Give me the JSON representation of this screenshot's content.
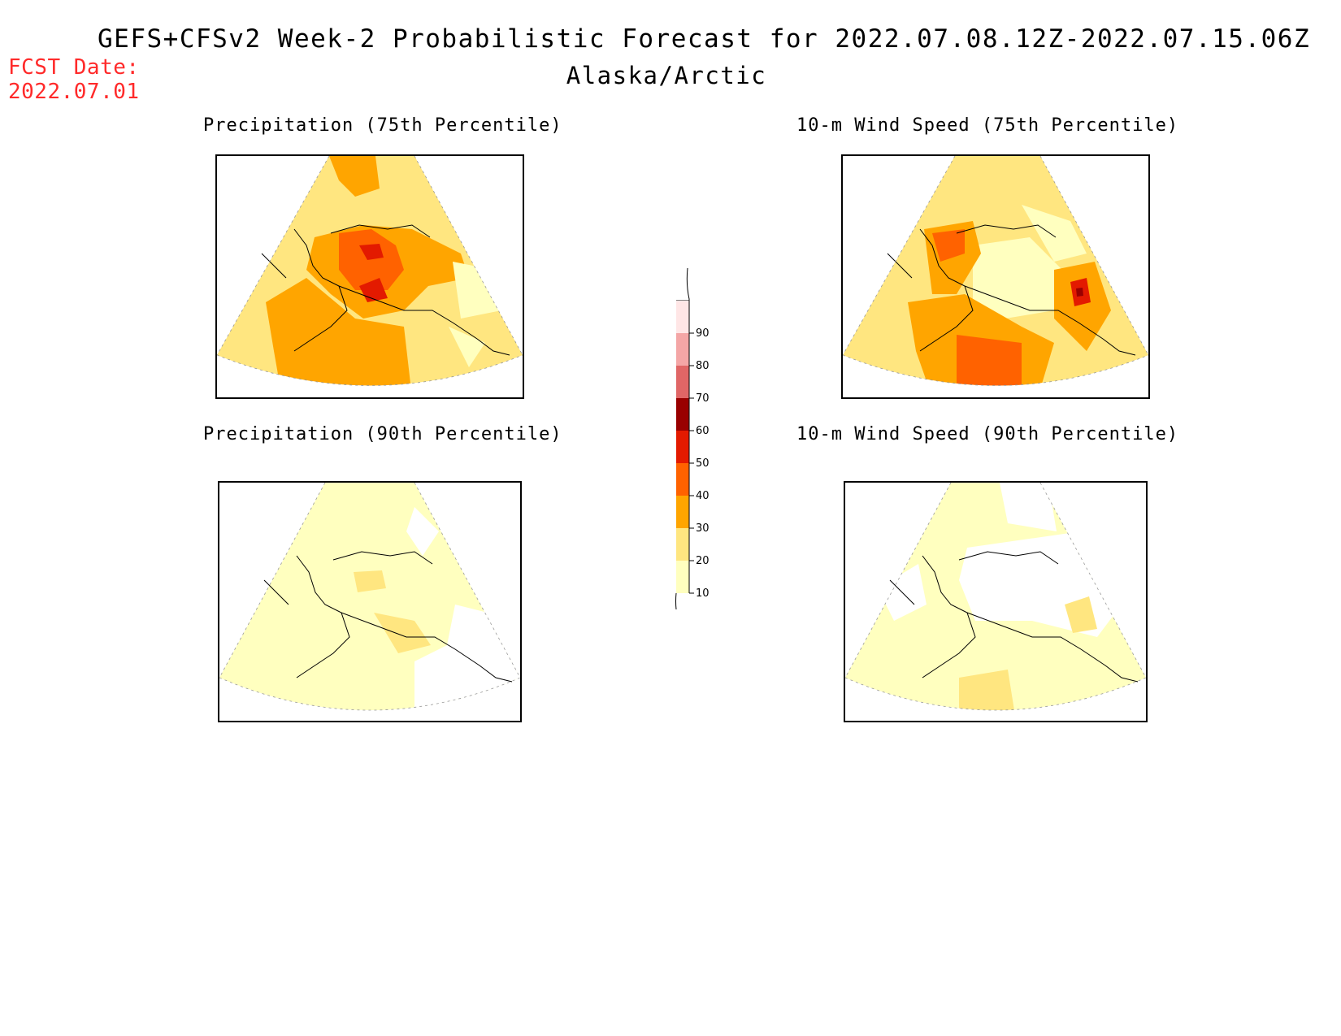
{
  "title": "GEFS+CFSv2 Week-2 Probabilistic Forecast for 2022.07.08.12Z-2022.07.15.06Z",
  "subtitle": "Alaska/Arctic",
  "fcst_date": {
    "label": "FCST Date:",
    "value": "2022.07.01"
  },
  "colors": {
    "fcst": "#ff2a2a",
    "levels": [
      "#ffffbf",
      "#ffe680",
      "#ffa500",
      "#ff6200",
      "#e31a00",
      "#990000",
      "#e06666",
      "#f4a6a6",
      "#ffe6e6"
    ]
  },
  "panels": [
    {
      "id": "precip75",
      "title": "Precipitation (75th Percentile)"
    },
    {
      "id": "wind75",
      "title": "10-m Wind Speed (75th Percentile)"
    },
    {
      "id": "precip90",
      "title": "Precipitation (90th Percentile)"
    },
    {
      "id": "wind90",
      "title": "10-m Wind Speed (90th Percentile)"
    }
  ],
  "legend": {
    "ticks": [
      "90",
      "80",
      "70",
      "60",
      "50",
      "40",
      "30",
      "20",
      "10"
    ]
  }
}
